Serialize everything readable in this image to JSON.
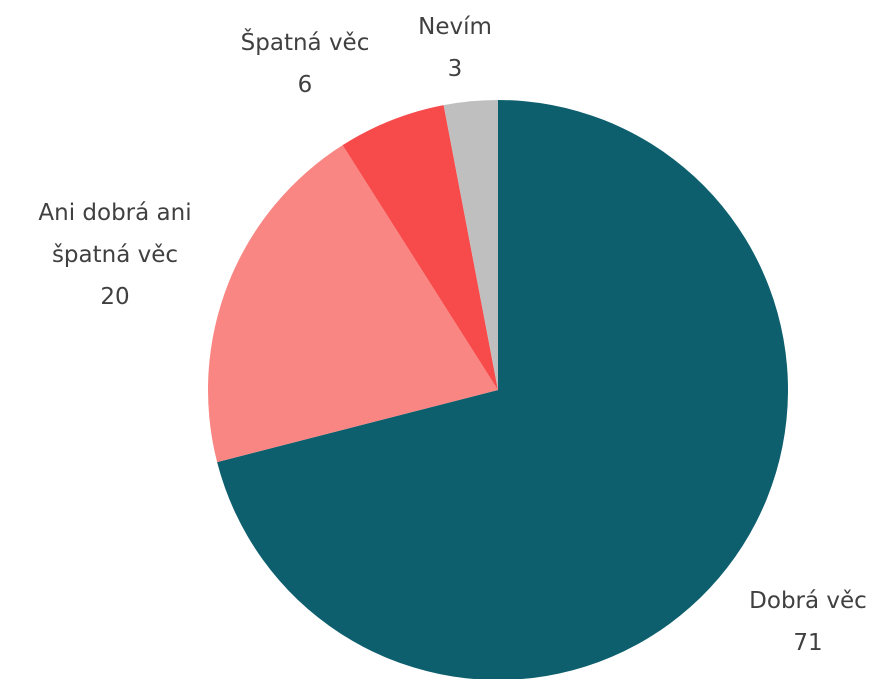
{
  "chart_data": {
    "type": "pie",
    "categories": [
      "Dobrá věc",
      "Ani dobrá ani špatná věc",
      "Špatná věc",
      "Nevím"
    ],
    "values": [
      71,
      20,
      6,
      3
    ],
    "colors": [
      "#0d5f6e",
      "#f98683",
      "#f74b4b",
      "#bfbfbf"
    ]
  }
}
